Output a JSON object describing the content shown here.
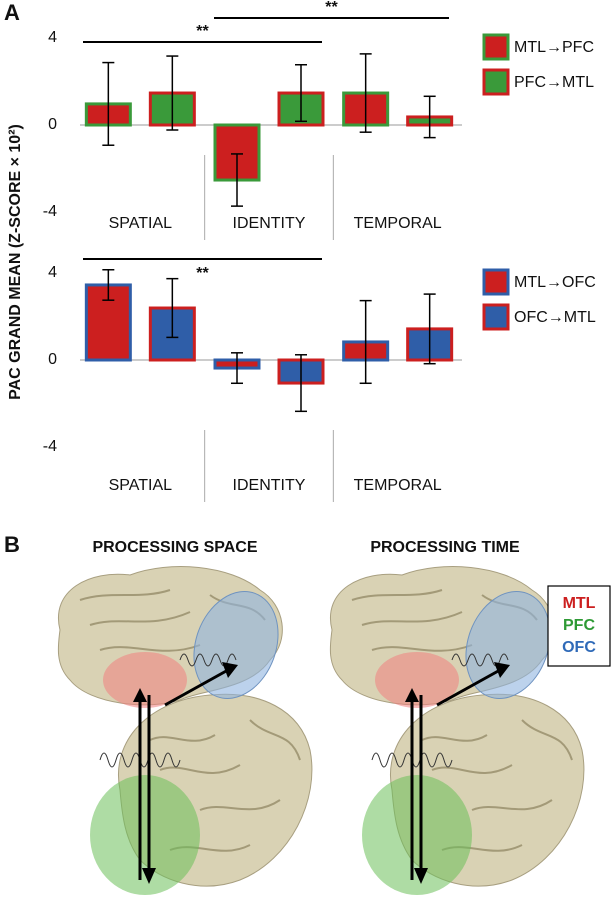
{
  "figure": {
    "panel_labels": [
      "A",
      "B"
    ],
    "y_label": "PAC GRAND MEAN (Z-SCORE × 10²)"
  },
  "chart_data": [
    {
      "type": "bar",
      "categories": [
        "SPATIAL",
        "IDENTITY",
        "TEMPORAL"
      ],
      "series": [
        {
          "name": "MTL→PFC",
          "color": "#cc1f1f",
          "edgecolor": "#3a9a3a",
          "values": [
            0.97,
            -2.53,
            1.47
          ],
          "errors": [
            1.9,
            1.2,
            1.8
          ]
        },
        {
          "name": "PFC→MTL",
          "color": "#3a9a3a",
          "edgecolor": "#cc1f1f",
          "values": [
            1.47,
            1.47,
            0.37
          ],
          "errors": [
            1.7,
            1.3,
            0.95
          ]
        }
      ],
      "ylim": [
        -4,
        4
      ],
      "yticks": [
        -4,
        0,
        4
      ],
      "annotations": [
        "**",
        "**"
      ]
    },
    {
      "type": "bar",
      "categories": [
        "SPATIAL",
        "IDENTITY",
        "TEMPORAL"
      ],
      "series": [
        {
          "name": "MTL→OFC",
          "color": "#cc1f1f",
          "edgecolor": "#2f5ea8",
          "values": [
            3.45,
            -0.37,
            0.83
          ],
          "errors": [
            0.7,
            0.7,
            1.9
          ]
        },
        {
          "name": "OFC→MTL",
          "color": "#2f5ea8",
          "edgecolor": "#cc1f1f",
          "values": [
            2.39,
            -1.06,
            1.43
          ],
          "errors": [
            1.35,
            1.3,
            1.6
          ]
        }
      ],
      "ylim": [
        -4,
        4
      ],
      "yticks": [
        -4,
        0,
        4
      ],
      "annotations": [
        "**"
      ]
    }
  ],
  "panel_b": {
    "titles": [
      "PROCESSING SPACE",
      "PROCESSING TIME"
    ],
    "legend": [
      "MTL",
      "PFC",
      "OFC"
    ]
  }
}
